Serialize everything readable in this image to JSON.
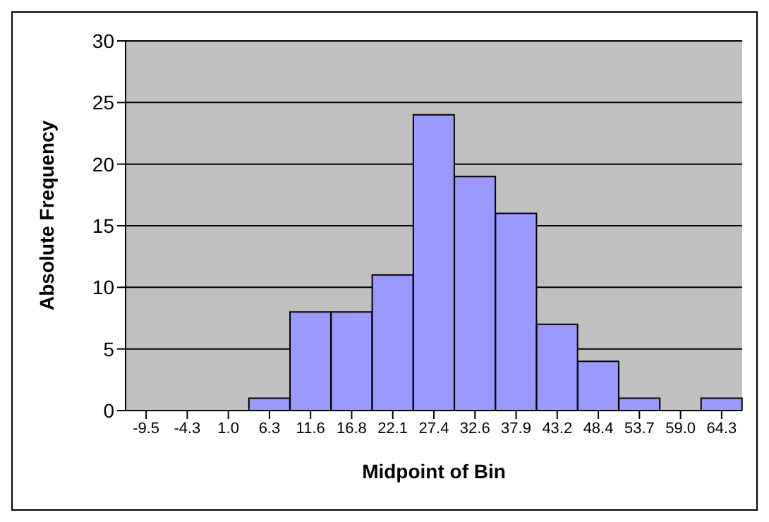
{
  "chart_data": {
    "type": "bar",
    "xlabel": "Midpoint of Bin",
    "ylabel": "Absolute Frequency",
    "categories": [
      "-9.5",
      "-4.3",
      "1.0",
      "6.3",
      "11.6",
      "16.8",
      "22.1",
      "27.4",
      "32.6",
      "37.9",
      "43.2",
      "48.4",
      "53.7",
      "59.0",
      "64.3"
    ],
    "values": [
      0,
      0,
      0,
      1,
      8,
      8,
      11,
      24,
      19,
      16,
      7,
      4,
      1,
      0,
      1
    ],
    "color": "#9999ff",
    "ylim": [
      0,
      30
    ],
    "yticks": [
      0,
      5,
      10,
      15,
      20,
      25,
      30
    ],
    "grid": "y"
  }
}
